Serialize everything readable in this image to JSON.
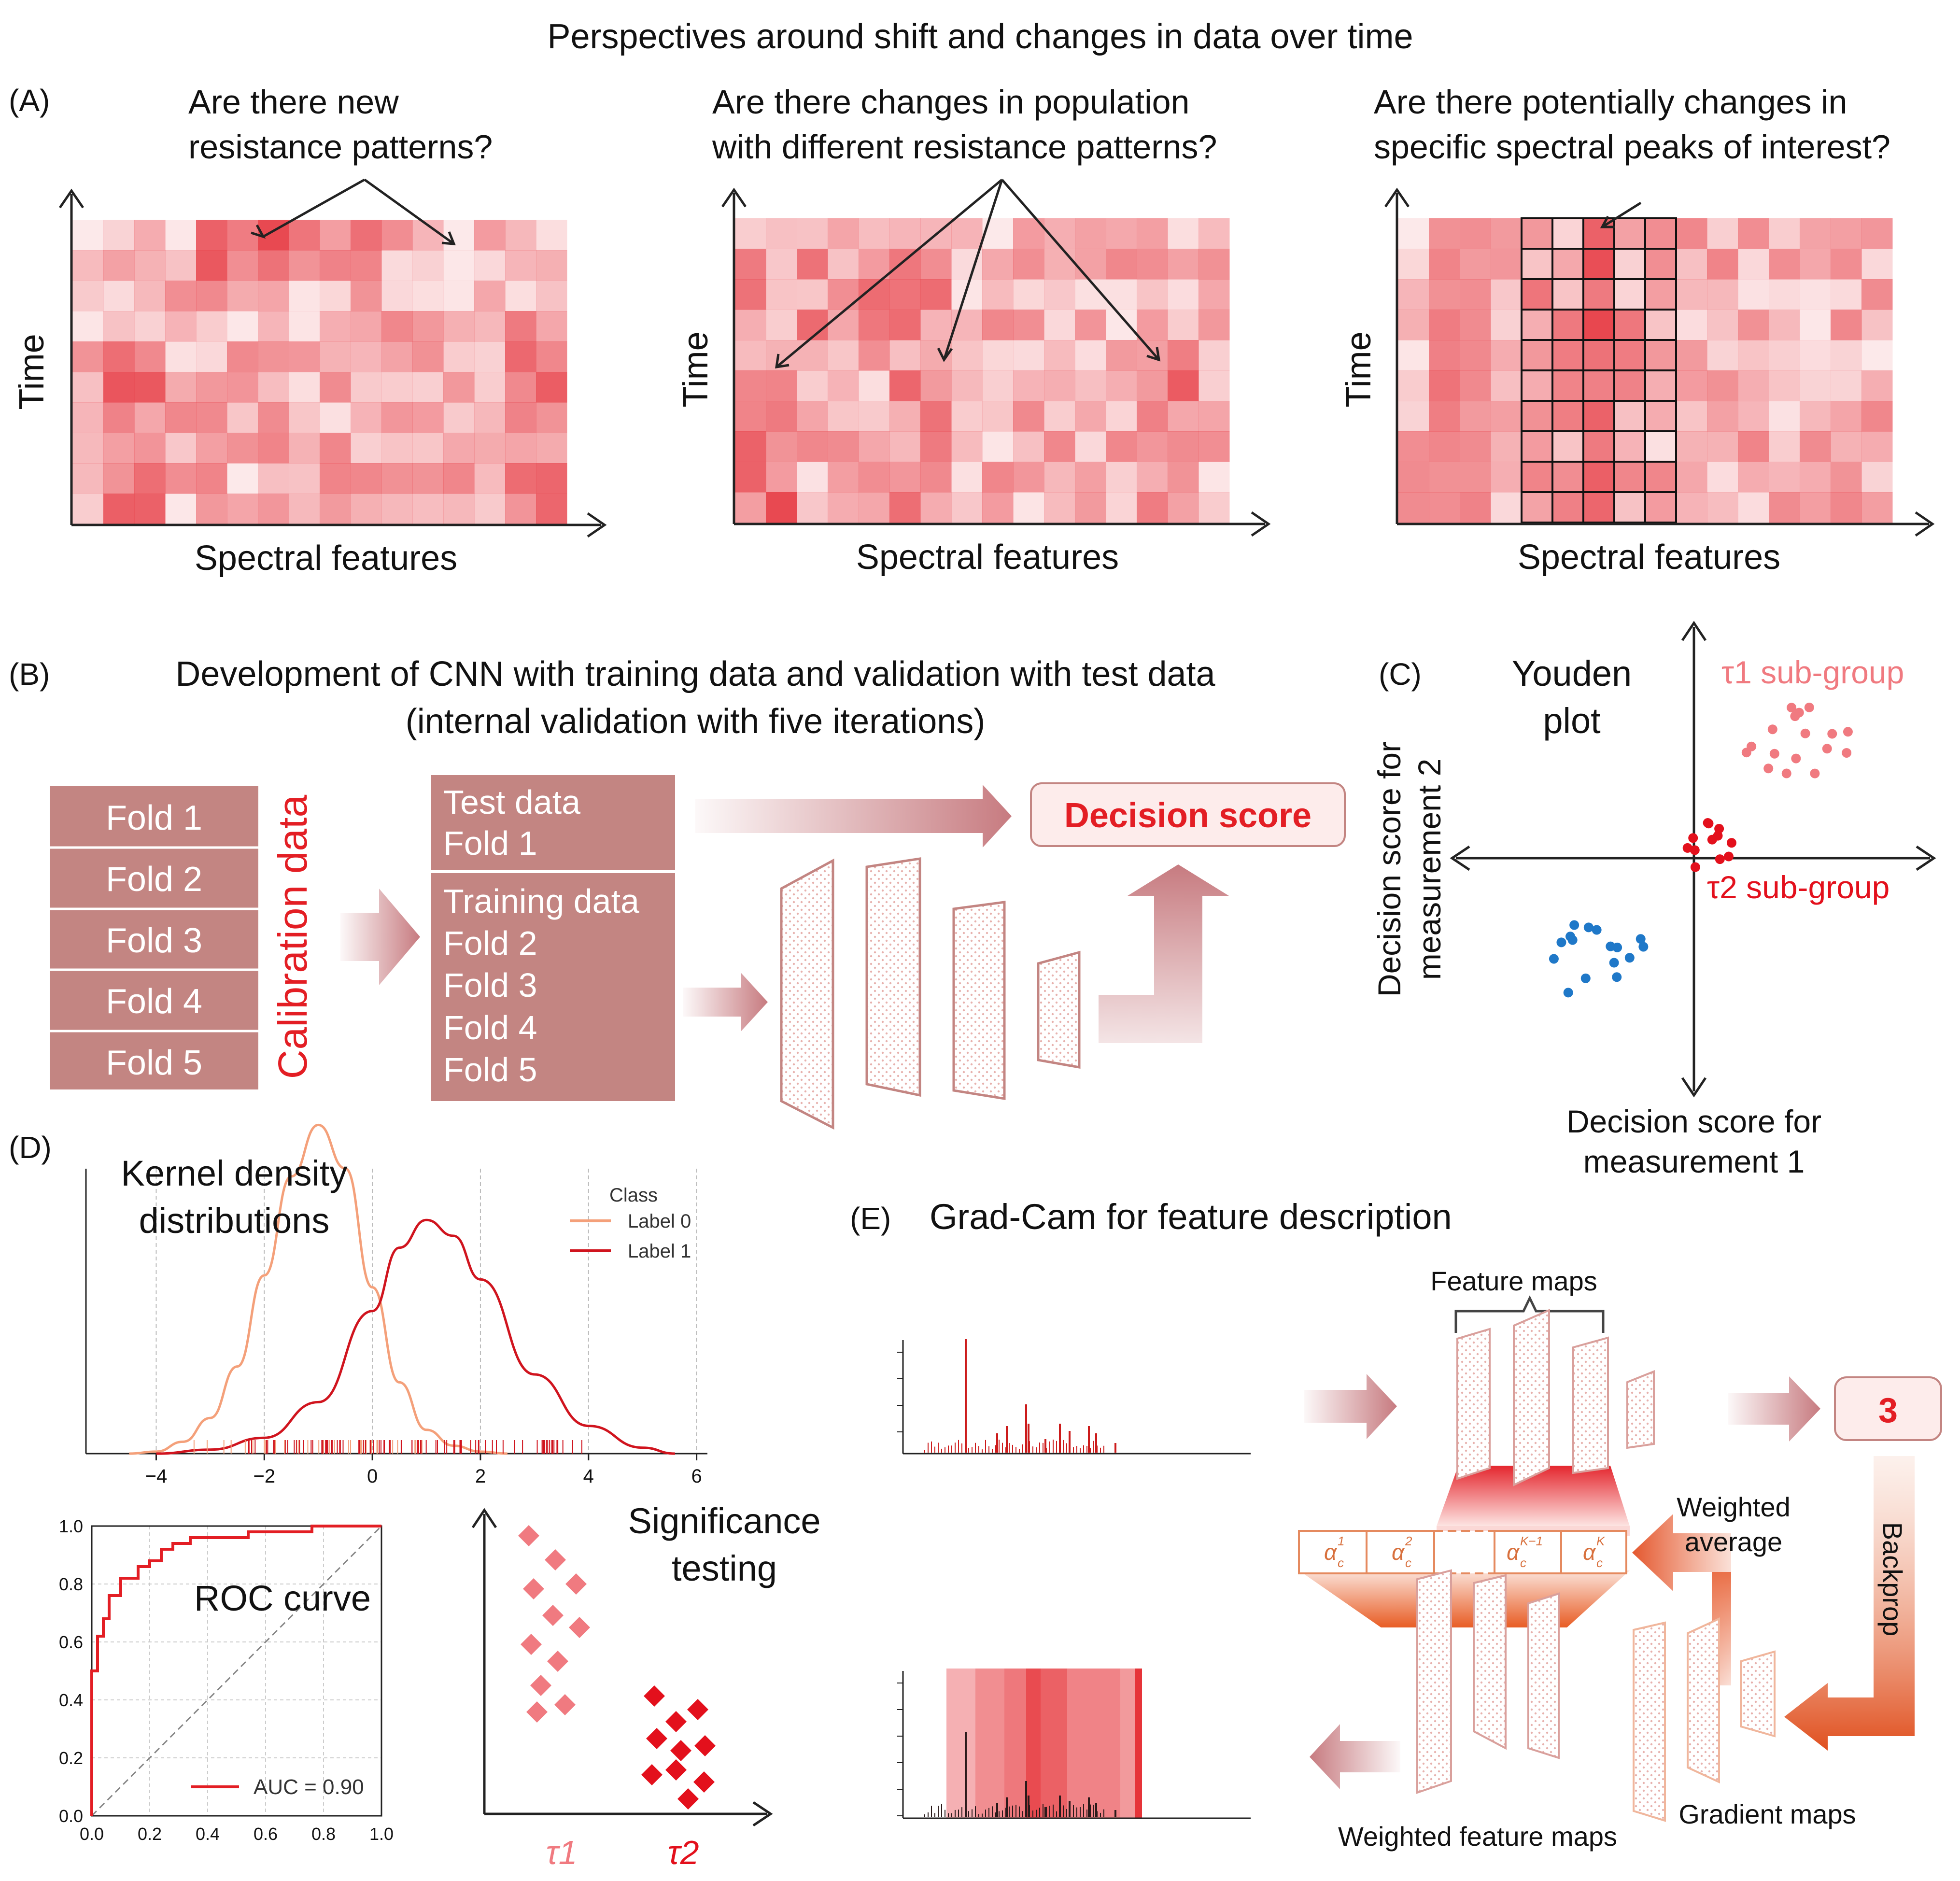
{
  "title": "Perspectives around shift and changes in data over time",
  "panelA": {
    "label": "(A)",
    "questions": [
      [
        "Are there new",
        "resistance patterns?"
      ],
      [
        "Are there changes in population",
        "with different resistance patterns?"
      ],
      [
        "Are there potentially changes in",
        "specific spectral peaks of interest?"
      ]
    ],
    "y_label": "Time",
    "x_label": "Spectral features",
    "heatmap_color": "#e8474f"
  },
  "panelB": {
    "label": "(B)",
    "title_lines": [
      "Development of CNN with training data and validation with test data",
      "(internal validation with five iterations)"
    ],
    "folds": [
      "Fold 1",
      "Fold 2",
      "Fold 3",
      "Fold 4",
      "Fold 5"
    ],
    "calibration_label": "Calibration data",
    "test_lines": [
      "Test data",
      "Fold 1"
    ],
    "training_lines": [
      "Training data",
      "Fold 2",
      "Fold 3",
      "Fold 4",
      "Fold 5"
    ],
    "decision_score": "Decision score",
    "box_color": "#c38582",
    "accent_red": "#e31e24"
  },
  "panelC": {
    "label": "(C)",
    "title_lines": [
      "Youden",
      "plot"
    ],
    "tau1": "τ1 sub-group",
    "tau2": "τ2 sub-group",
    "y_axis_lines": [
      "Decision score for",
      "measurement 2"
    ],
    "x_axis_lines": [
      "Decision score for",
      "measurement 1"
    ],
    "colors": {
      "tau1": "#f07a80",
      "tau2": "#e3101c",
      "other": "#1f78c8"
    }
  },
  "panelD": {
    "label": "(D)",
    "kde_title_lines": [
      "Kernel density",
      "distributions"
    ],
    "legend_title": "Class",
    "legend_labels": [
      "Label 0",
      "Label 1"
    ],
    "kde_colors": [
      "#f4a07a",
      "#d0141e"
    ],
    "kde_ticks": [
      "−4",
      "−2",
      "0",
      "2",
      "4",
      "6"
    ],
    "roc_title": "ROC curve",
    "auc_label": "AUC = 0.90",
    "roc_ticks": [
      "0.0",
      "0.2",
      "0.4",
      "0.6",
      "0.8",
      "1.0"
    ],
    "sig_title_lines": [
      "Significance",
      "testing"
    ],
    "sig_x_labels": [
      "τ1",
      "τ2"
    ]
  },
  "panelE": {
    "label": "(E)",
    "title": "Grad-Cam for feature description",
    "feature_maps": "Feature maps",
    "output_value": "3",
    "weighted_average_lines": [
      "Weighted",
      "average"
    ],
    "backprop": "Backprop",
    "gradient_maps": "Gradient maps",
    "weighted_feature_maps": "Weighted feature maps"
  },
  "chart_data": [
    {
      "type": "line",
      "title": "Kernel density distributions",
      "xlabel": "",
      "ylabel": "",
      "xlim": [
        -5.3,
        6.2
      ],
      "legend_title": "Class",
      "legend_position": "top-right",
      "series": [
        {
          "name": "Label 0",
          "x": [
            -4.5,
            -4,
            -3.5,
            -3,
            -2.5,
            -2,
            -1.5,
            -1,
            -0.5,
            0,
            0.5,
            1,
            1.5,
            2,
            2.5
          ],
          "values": [
            0.0,
            0.005,
            0.03,
            0.09,
            0.22,
            0.45,
            0.7,
            0.83,
            0.72,
            0.42,
            0.18,
            0.06,
            0.02,
            0.005,
            0.0
          ]
        },
        {
          "name": "Label 1",
          "x": [
            -4,
            -3,
            -2,
            -1,
            0,
            0.5,
            1,
            1.5,
            2,
            3,
            4,
            5,
            5.6
          ],
          "values": [
            0.0,
            0.01,
            0.04,
            0.13,
            0.36,
            0.52,
            0.59,
            0.55,
            0.44,
            0.2,
            0.07,
            0.015,
            0.0
          ]
        }
      ]
    },
    {
      "type": "line",
      "title": "ROC curve",
      "xlim": [
        0,
        1
      ],
      "ylim": [
        0,
        1
      ],
      "series": [
        {
          "name": "AUC = 0.90",
          "x": [
            0,
            0,
            0.02,
            0.02,
            0.04,
            0.04,
            0.06,
            0.06,
            0.1,
            0.1,
            0.16,
            0.16,
            0.2,
            0.2,
            0.24,
            0.24,
            0.28,
            0.28,
            0.34,
            0.34,
            0.54,
            0.54,
            0.76,
            0.76,
            1.0
          ],
          "values": [
            0,
            0.5,
            0.5,
            0.62,
            0.62,
            0.68,
            0.68,
            0.76,
            0.76,
            0.82,
            0.82,
            0.86,
            0.86,
            0.88,
            0.88,
            0.92,
            0.92,
            0.94,
            0.94,
            0.96,
            0.96,
            0.98,
            0.98,
            1.0,
            1.0
          ]
        },
        {
          "name": "chance",
          "x": [
            0,
            1
          ],
          "values": [
            0,
            1
          ]
        }
      ]
    }
  ]
}
